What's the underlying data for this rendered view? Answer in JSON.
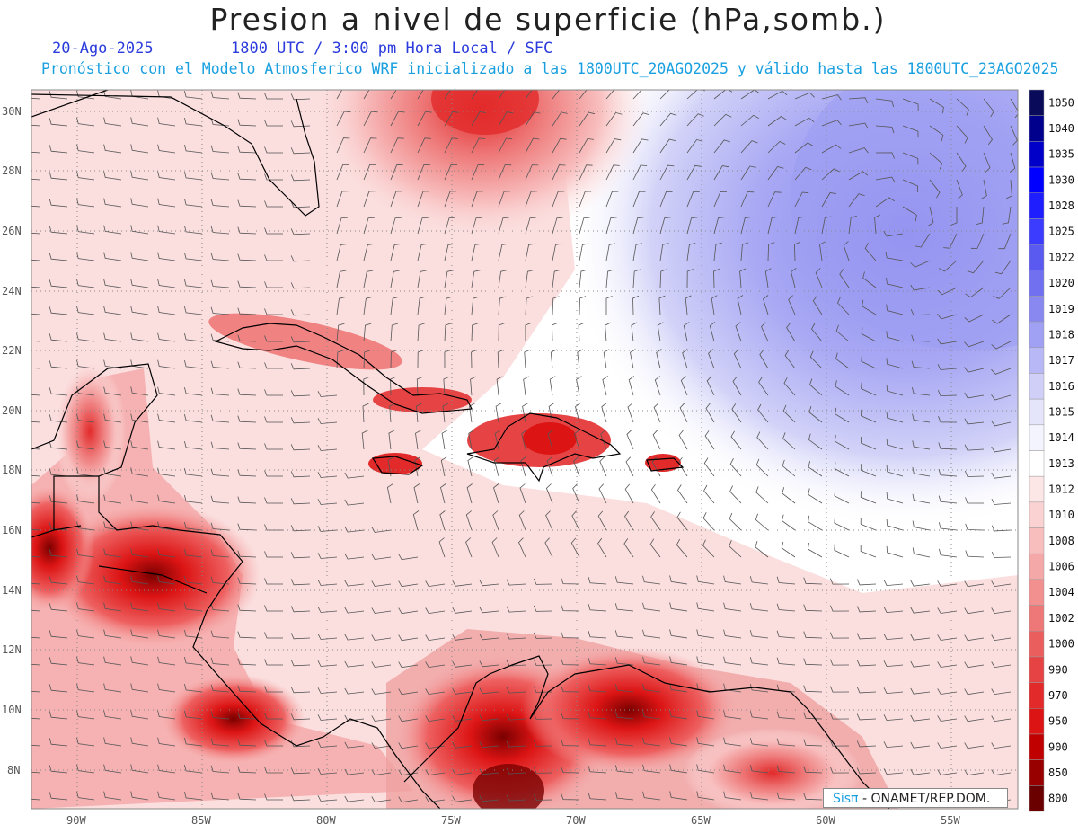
{
  "header": {
    "title": "Presion a nivel de superficie (hPa,somb.)",
    "date": "20-Ago-2025",
    "time_line": "1800 UTC / 3:00 pm Hora Local / SFC",
    "model_line": "Pronóstico con el Modelo Atmosferico WRF inicializado a las 1800UTC_20AGO2025 y válido hasta las  1800UTC_23AGO2025"
  },
  "axes": {
    "lat_labels": [
      "30N",
      "28N",
      "26N",
      "24N",
      "22N",
      "20N",
      "18N",
      "16N",
      "14N",
      "12N",
      "10N",
      "8N"
    ],
    "lon_labels": [
      "90W",
      "85W",
      "80W",
      "75W",
      "70W",
      "65W",
      "60W",
      "55W"
    ]
  },
  "colorbar": {
    "levels": [
      "1050",
      "1040",
      "1035",
      "1030",
      "1028",
      "1025",
      "1022",
      "1020",
      "1019",
      "1018",
      "1017",
      "1016",
      "1015",
      "1014",
      "1013",
      "1012",
      "1010",
      "1008",
      "1006",
      "1004",
      "1002",
      "1000",
      "990",
      "970",
      "950",
      "900",
      "850",
      "800"
    ],
    "colors": [
      "#0a0a5a",
      "#00008c",
      "#0000c8",
      "#0000ff",
      "#1e1eff",
      "#3c3cff",
      "#5a5af0",
      "#7070f0",
      "#8888f0",
      "#a0a0f4",
      "#b8b8f6",
      "#cfcff8",
      "#e4e4fb",
      "#f4f4fe",
      "#ffffff",
      "#fde6e6",
      "#fbd2d2",
      "#f8bebe",
      "#f5a8a8",
      "#f29090",
      "#ee7878",
      "#ea5e5e",
      "#e64444",
      "#e22a2a",
      "#dc1414",
      "#c00000",
      "#980000",
      "#6a0000"
    ]
  },
  "credit": {
    "brand": "Sisπ",
    "text": " - ONAMET/REP.DOM."
  }
}
